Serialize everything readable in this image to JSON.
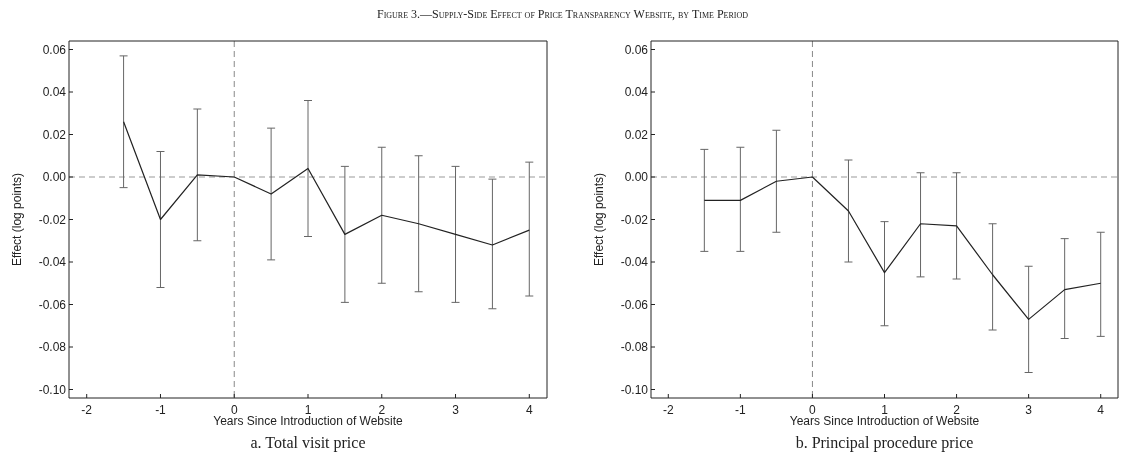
{
  "chart_data": [
    {
      "type": "line",
      "title": "Figure 3.—Supply-Side Effect of Price Transparency Website, by Time Period",
      "subtitle": "a. Total visit price",
      "xlabel": "Years Since Introduction of Website",
      "ylabel": "Effect (log points)",
      "x": [
        -1.5,
        -1,
        -0.5,
        0,
        0.5,
        1,
        1.5,
        2,
        2.5,
        3,
        3.5,
        4
      ],
      "series": [
        {
          "color": "#222222",
          "values": [
            0.026,
            -0.02,
            0.001,
            0,
            -0.008,
            0.004,
            -0.027,
            -0.018,
            -0.022,
            -0.027,
            -0.032,
            -0.025
          ],
          "errors": [
            [
              -0.005,
              0.057
            ],
            [
              -0.052,
              0.012
            ],
            [
              -0.03,
              0.032
            ],
            null,
            [
              -0.039,
              0.023
            ],
            [
              -0.028,
              0.036
            ],
            [
              -0.059,
              0.005
            ],
            [
              -0.05,
              0.014
            ],
            [
              -0.054,
              0.01
            ],
            [
              -0.059,
              0.005
            ],
            [
              -0.062,
              -0.001
            ],
            [
              -0.056,
              0.007
            ]
          ]
        }
      ],
      "xlim": [
        -2.24,
        4.24
      ],
      "ylim": [
        -0.104,
        0.064
      ],
      "xticks": [
        -2,
        -1,
        0,
        1,
        2,
        3,
        4
      ],
      "yticks": [
        {
          "value": -0.1,
          "label": "-0.10"
        },
        {
          "value": -0.08,
          "label": "-0.08"
        },
        {
          "value": -0.06,
          "label": "-0.06"
        },
        {
          "value": -0.04,
          "label": "-0.04"
        },
        {
          "value": -0.02,
          "label": "-0.02"
        },
        {
          "value": 0,
          "label": "0.00"
        },
        {
          "value": 0.02,
          "label": "0.02"
        },
        {
          "value": 0.04,
          "label": "0.04"
        },
        {
          "value": 0.06,
          "label": "0.06"
        }
      ],
      "ref_lines": [
        {
          "axis": "x",
          "value": 0,
          "color": "#888888",
          "line_style": "dashed"
        },
        {
          "axis": "y",
          "value": 0,
          "color": "#999999",
          "line_style": "dashed"
        }
      ],
      "marker": "none",
      "line_style": "solid"
    },
    {
      "type": "line",
      "subtitle": "b. Principal procedure price",
      "xlabel": "Years Since Introduction of Website",
      "ylabel": "Effect (log points)",
      "x": [
        -1.5,
        -1,
        -0.5,
        0,
        0.5,
        1,
        1.5,
        2,
        2.5,
        3,
        3.5,
        4
      ],
      "series": [
        {
          "color": "#222222",
          "values": [
            -0.011,
            -0.011,
            -0.002,
            0,
            -0.016,
            -0.045,
            -0.022,
            -0.023,
            -0.046,
            -0.067,
            -0.053,
            -0.05
          ],
          "errors": [
            [
              -0.035,
              0.013
            ],
            [
              -0.035,
              0.014
            ],
            [
              -0.026,
              0.022
            ],
            null,
            [
              -0.04,
              0.008
            ],
            [
              -0.07,
              -0.021
            ],
            [
              -0.047,
              0.002
            ],
            [
              -0.048,
              0.002
            ],
            [
              -0.072,
              -0.022
            ],
            [
              -0.092,
              -0.042
            ],
            [
              -0.076,
              -0.029
            ],
            [
              -0.075,
              -0.026
            ]
          ]
        }
      ],
      "xlim": [
        -2.24,
        4.24
      ],
      "ylim": [
        -0.104,
        0.064
      ],
      "xticks": [
        -2,
        -1,
        0,
        1,
        2,
        3,
        4
      ],
      "yticks": [
        {
          "value": -0.1,
          "label": "-0.10"
        },
        {
          "value": -0.08,
          "label": "-0.08"
        },
        {
          "value": -0.06,
          "label": "-0.06"
        },
        {
          "value": -0.04,
          "label": "-0.04"
        },
        {
          "value": -0.02,
          "label": "-0.02"
        },
        {
          "value": 0,
          "label": "0.00"
        },
        {
          "value": 0.02,
          "label": "0.02"
        },
        {
          "value": 0.04,
          "label": "0.04"
        },
        {
          "value": 0.06,
          "label": "0.06"
        }
      ],
      "ref_lines": [
        {
          "axis": "x",
          "value": 0,
          "color": "#888888",
          "line_style": "dashed"
        },
        {
          "axis": "y",
          "value": 0,
          "color": "#999999",
          "line_style": "dashed"
        }
      ],
      "marker": "none",
      "line_style": "solid"
    }
  ]
}
